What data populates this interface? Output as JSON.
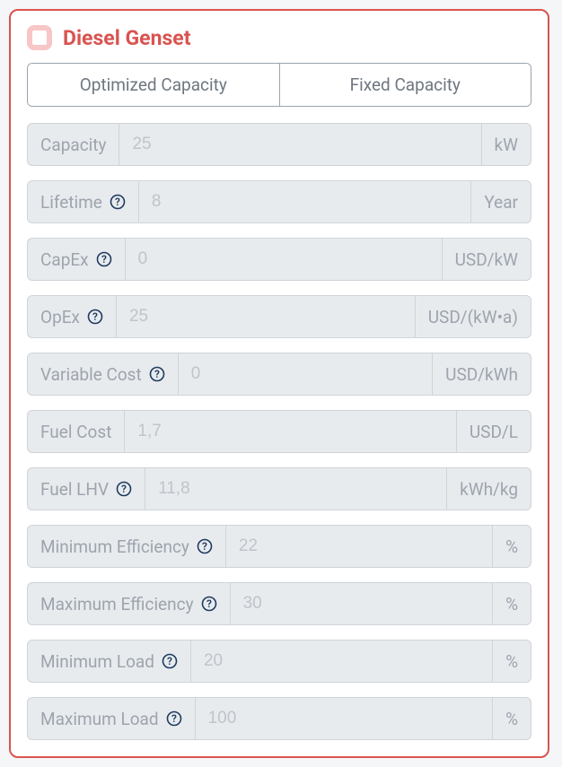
{
  "card": {
    "title": "Diesel Genset",
    "border_color": "#d9534f",
    "checkbox_border": "#f7c6c6",
    "background": "#ffffff"
  },
  "tabs": {
    "optimized": "Optimized Capacity",
    "fixed": "Fixed Capacity"
  },
  "field_bg": "#e8ebee",
  "label_color": "#9da4ad",
  "value_color": "#bfc4ca",
  "help_icon_color": "#1e3a5f",
  "fields": {
    "capacity": {
      "label": "Capacity",
      "value": "25",
      "unit": "kW",
      "help": false
    },
    "lifetime": {
      "label": "Lifetime",
      "value": "8",
      "unit": "Year",
      "help": true
    },
    "capex": {
      "label": "CapEx",
      "value": "0",
      "unit": "USD/kW",
      "help": true
    },
    "opex": {
      "label": "OpEx",
      "value": "25",
      "unit": "USD/(kW•a)",
      "help": true
    },
    "varcost": {
      "label": "Variable Cost",
      "value": "0",
      "unit": "USD/kWh",
      "help": true
    },
    "fuelcost": {
      "label": "Fuel Cost",
      "value": "1,7",
      "unit": "USD/L",
      "help": false
    },
    "fuellhv": {
      "label": "Fuel LHV",
      "value": "11,8",
      "unit": "kWh/kg",
      "help": true
    },
    "mineff": {
      "label": "Minimum Efficiency",
      "value": "22",
      "unit": "%",
      "help": true
    },
    "maxeff": {
      "label": "Maximum Efficiency",
      "value": "30",
      "unit": "%",
      "help": true
    },
    "minload": {
      "label": "Minimum Load",
      "value": "20",
      "unit": "%",
      "help": true
    },
    "maxload": {
      "label": "Maximum Load",
      "value": "100",
      "unit": "%",
      "help": true
    }
  }
}
